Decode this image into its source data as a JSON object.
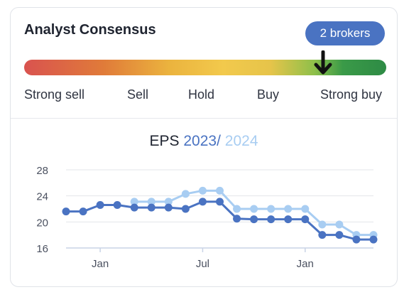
{
  "consensus": {
    "title": "Analyst Consensus",
    "brokers_badge": "2 brokers",
    "rating_labels": [
      "Strong sell",
      "Sell",
      "Hold",
      "Buy",
      "Strong buy"
    ],
    "rating_position": 0.825
  },
  "eps": {
    "title_prefix": "EPS",
    "year1": "2023",
    "separator": "/",
    "year2": "2024"
  },
  "colors": {
    "series_2023": "#4a73c2",
    "series_2024": "#a8cdf2",
    "grid": "#e3e6ea",
    "axis_text": "#4b5160"
  },
  "chart_data": {
    "type": "line",
    "x_tick_labels": [
      "Jan",
      "Jul",
      "Jan"
    ],
    "x_tick_index": [
      2,
      8,
      14
    ],
    "y_ticks": [
      16,
      20,
      24,
      28
    ],
    "ylim": [
      16,
      28
    ],
    "grid": true,
    "series": [
      {
        "name": "2023",
        "values": [
          21.6,
          21.6,
          22.6,
          22.6,
          22.2,
          22.2,
          22.2,
          22.0,
          23.1,
          23.1,
          20.5,
          20.4,
          20.4,
          20.4,
          20.4,
          18.0,
          18.0,
          17.3,
          17.3
        ]
      },
      {
        "name": "2024",
        "values": [
          null,
          null,
          null,
          null,
          23.1,
          23.1,
          23.1,
          24.3,
          24.8,
          24.8,
          22.0,
          22.0,
          22.0,
          22.0,
          22.0,
          19.6,
          19.6,
          18.0,
          18.0
        ]
      }
    ]
  }
}
